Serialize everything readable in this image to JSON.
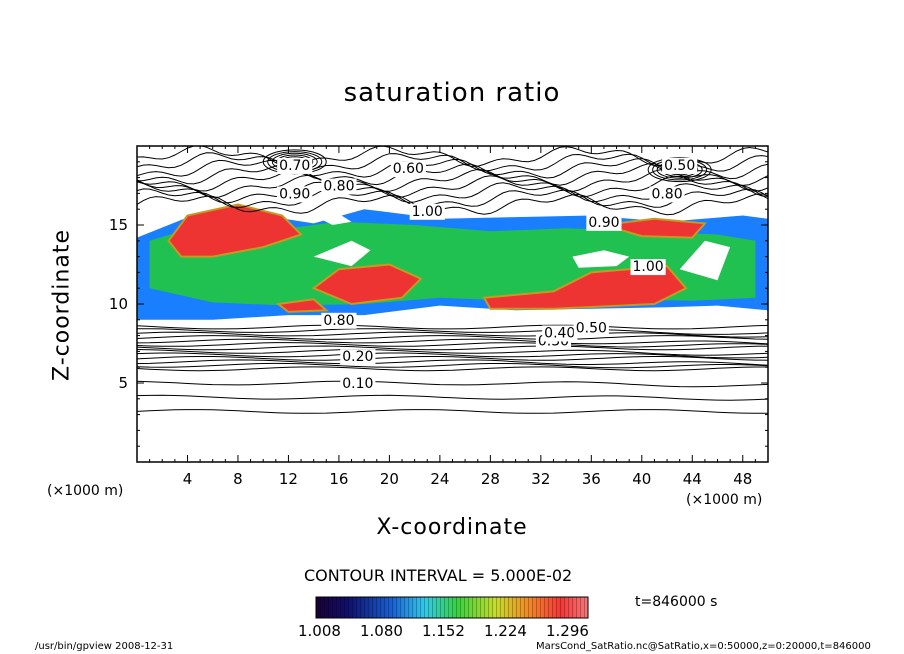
{
  "title": "saturation ratio",
  "chart_data": {
    "type": "heatmap",
    "title": "saturation ratio",
    "xlabel": "X-coordinate",
    "ylabel": "Z-coordinate",
    "x_unit": "(×1000 m)",
    "xlim": [
      0,
      50
    ],
    "ylim": [
      0,
      20
    ],
    "x_ticks": [
      4,
      8,
      12,
      16,
      20,
      24,
      28,
      32,
      36,
      40,
      44,
      48
    ],
    "y_ticks": [
      5,
      10,
      15
    ],
    "contour_labels": [
      {
        "text": "0.10",
        "x": 17.5,
        "z": 5.0
      },
      {
        "text": "0.20",
        "x": 17.5,
        "z": 6.7
      },
      {
        "text": "0.30",
        "x": 33.0,
        "z": 7.7
      },
      {
        "text": "0.40",
        "x": 33.5,
        "z": 8.2
      },
      {
        "text": "0.50",
        "x": 36.0,
        "z": 8.5
      },
      {
        "text": "0.60",
        "x": 21.5,
        "z": 18.6
      },
      {
        "text": "0.70",
        "x": 12.5,
        "z": 18.8
      },
      {
        "text": "0.80",
        "x": 16.0,
        "z": 17.5
      },
      {
        "text": "0.80",
        "x": 42.0,
        "z": 17.0
      },
      {
        "text": "0.90",
        "x": 12.5,
        "z": 17.0
      },
      {
        "text": "0.90",
        "x": 37.0,
        "z": 15.2
      },
      {
        "text": "1.00",
        "x": 23.0,
        "z": 15.9
      },
      {
        "text": "1.00",
        "x": 40.5,
        "z": 12.4
      },
      {
        "text": "0.50",
        "x": 43.0,
        "z": 18.8
      },
      {
        "text": "0.80",
        "x": 16.0,
        "z": 9.0
      }
    ],
    "contour_interval": "CONTOUR INTERVAL = 5.000E-02",
    "colorbar_ticks": [
      "1.008",
      "1.080",
      "1.152",
      "1.224",
      "1.296"
    ],
    "colorbar_range": [
      1.008,
      1.296
    ],
    "time": "t=846000 s"
  },
  "footer": {
    "left": "/usr/bin/gpview    2008-12-31",
    "right": "MarsCond_SatRatio.nc@SatRatio,x=0:50000,z=0:20000,t=846000"
  },
  "colors": {
    "low": "#000066",
    "mid": "#1a7fff",
    "green": "#22cc33",
    "high": "#ee3333"
  }
}
